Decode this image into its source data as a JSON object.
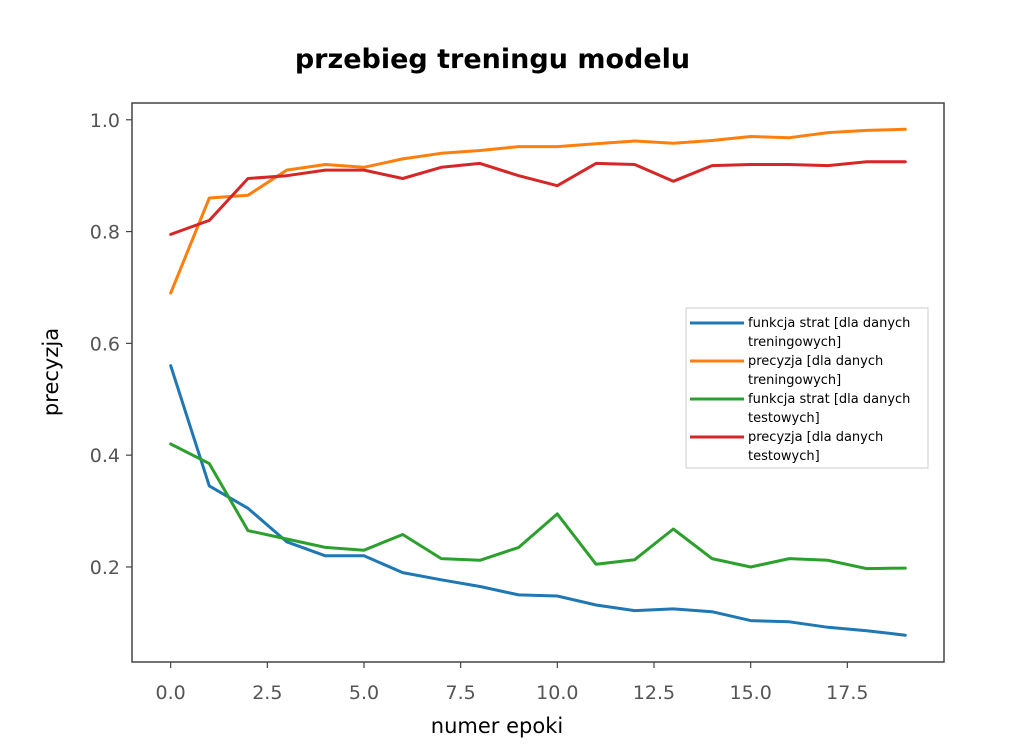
{
  "chart_data": {
    "type": "line",
    "title": "przebieg treningu modelu",
    "xlabel": "numer epoki",
    "ylabel": "precyzja",
    "xlim": [
      -1,
      20
    ],
    "ylim": [
      0.03,
      1.03
    ],
    "xticks": [
      "0.0",
      "2.5",
      "5.0",
      "7.5",
      "10.0",
      "12.5",
      "15.0",
      "17.5"
    ],
    "yticks": [
      "0.2",
      "0.4",
      "0.6",
      "0.8",
      "1.0"
    ],
    "grid": false,
    "legend_position": "center-right",
    "x": [
      0,
      1,
      2,
      3,
      4,
      5,
      6,
      7,
      8,
      9,
      10,
      11,
      12,
      13,
      14,
      15,
      16,
      17,
      18,
      19
    ],
    "series": [
      {
        "name": "funkcja strat [dla danych treningowych]",
        "legend_lines": [
          "funkcja strat [dla danych",
          "treningowych]"
        ],
        "color": "#1f77b4",
        "values": [
          0.56,
          0.345,
          0.305,
          0.245,
          0.22,
          0.22,
          0.19,
          0.177,
          0.165,
          0.15,
          0.148,
          0.132,
          0.122,
          0.125,
          0.12,
          0.104,
          0.102,
          0.092,
          0.086,
          0.078
        ]
      },
      {
        "name": "precyzja [dla danych treningowych]",
        "legend_lines": [
          "precyzja [dla danych",
          "treningowych]"
        ],
        "color": "#ff7f0e",
        "values": [
          0.69,
          0.86,
          0.865,
          0.91,
          0.92,
          0.915,
          0.93,
          0.94,
          0.945,
          0.952,
          0.952,
          0.957,
          0.962,
          0.958,
          0.963,
          0.97,
          0.968,
          0.977,
          0.981,
          0.983
        ]
      },
      {
        "name": "funkcja strat [dla danych testowych]",
        "legend_lines": [
          "funkcja strat [dla danych",
          "testowych]"
        ],
        "color": "#2ca02c",
        "values": [
          0.42,
          0.385,
          0.265,
          0.25,
          0.235,
          0.23,
          0.258,
          0.215,
          0.212,
          0.235,
          0.295,
          0.205,
          0.213,
          0.268,
          0.215,
          0.2,
          0.215,
          0.212,
          0.197,
          0.198
        ]
      },
      {
        "name": "precyzja [dla danych testowych]",
        "legend_lines": [
          "precyzja [dla danych",
          "testowych]"
        ],
        "color": "#d62728",
        "values": [
          0.795,
          0.82,
          0.895,
          0.9,
          0.91,
          0.91,
          0.895,
          0.915,
          0.922,
          0.9,
          0.882,
          0.922,
          0.92,
          0.89,
          0.918,
          0.92,
          0.92,
          0.918,
          0.925,
          0.925
        ]
      }
    ]
  }
}
